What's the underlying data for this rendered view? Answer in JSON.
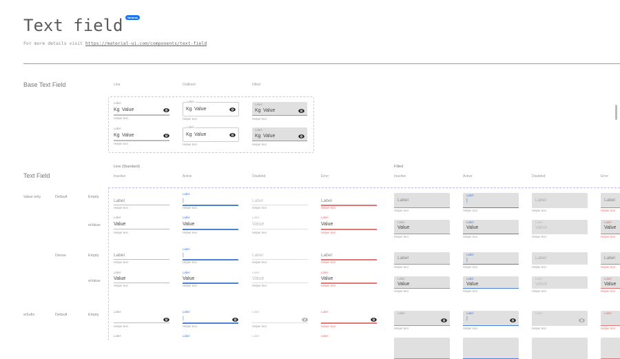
{
  "header": {
    "title": "Text field",
    "badge": "Variants",
    "details_prefix": "For more details visit",
    "details_link": "https://material-ui.com/components/text-field"
  },
  "base": {
    "title": "Base Text Field",
    "columns": [
      "Line",
      "Outlined",
      "Filled"
    ],
    "field": {
      "label": "Label",
      "prefix": "Kg",
      "value": "Value",
      "helper": "Helper text",
      "suffix_icon": "eye-icon"
    }
  },
  "text_field": {
    "title": "Text Field",
    "groups": [
      "Line (Standard)",
      "Filled"
    ],
    "states": [
      "Inactive",
      "Active",
      "Disabled",
      "Error"
    ],
    "row_labels": [
      {
        "variant": "Value only",
        "size": "Default",
        "content": "Empty"
      },
      {
        "variant": "",
        "size": "",
        "content": "wValue"
      },
      {
        "variant": "",
        "size": "Dense",
        "content": "Empty"
      },
      {
        "variant": "",
        "size": "",
        "content": "wValue"
      },
      {
        "variant": "wSufix",
        "size": "Default",
        "content": "Empty"
      }
    ],
    "field": {
      "label": "Label",
      "value": "Value",
      "helper": "Helper text",
      "cursor": "|",
      "suffix_icon": "eye-icon"
    }
  },
  "colors": {
    "active": "#4a7fd6",
    "error": "#e57373",
    "filled_bg": "#e0e0e0",
    "badge": "#1a73e8"
  }
}
